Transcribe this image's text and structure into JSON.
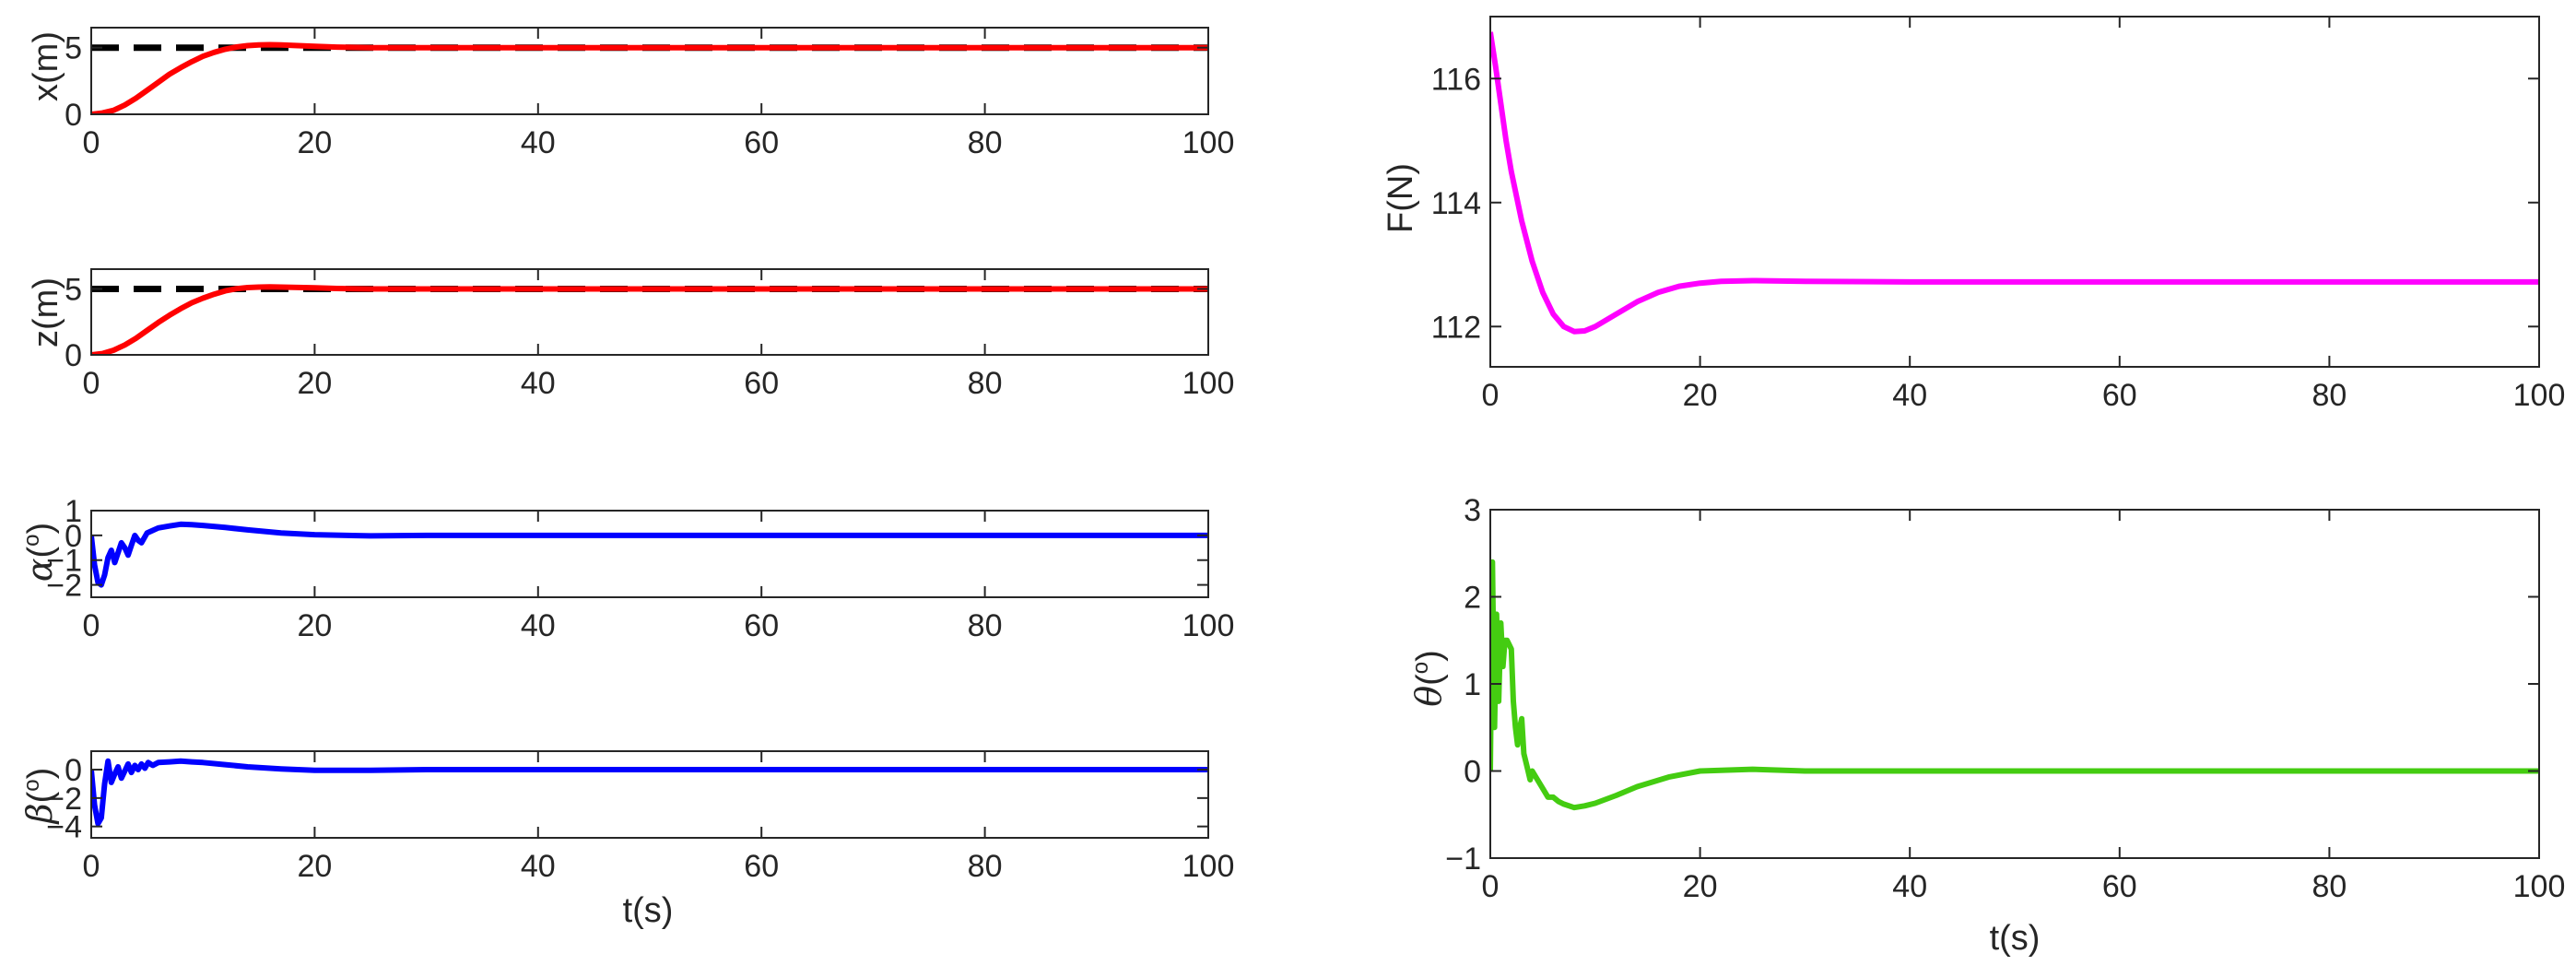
{
  "chart_data": [
    {
      "id": "x",
      "type": "line",
      "xlabel": "",
      "ylabel": "x(m)",
      "xlim": [
        0,
        100
      ],
      "ylim": [
        0,
        6.5
      ],
      "xticks": [
        0,
        20,
        40,
        60,
        80,
        100
      ],
      "yticks": [
        0,
        5
      ],
      "series": [
        {
          "name": "reference",
          "style": "dashed",
          "color": "#000000",
          "x": [
            0,
            100
          ],
          "y": [
            5,
            5
          ]
        },
        {
          "name": "x",
          "style": "solid",
          "color": "#ff0000",
          "x": [
            0,
            1,
            2,
            3,
            4,
            5,
            6,
            7,
            8,
            9,
            10,
            11,
            12,
            13,
            14,
            15,
            16,
            17,
            18,
            20,
            22,
            25,
            30,
            40,
            60,
            80,
            100
          ],
          "y": [
            0,
            0.1,
            0.3,
            0.7,
            1.2,
            1.8,
            2.4,
            3.0,
            3.5,
            3.95,
            4.35,
            4.65,
            4.88,
            5.05,
            5.15,
            5.2,
            5.22,
            5.2,
            5.17,
            5.1,
            5.04,
            5.0,
            5.0,
            5.0,
            5.0,
            5.0,
            5.0
          ]
        }
      ]
    },
    {
      "id": "z",
      "type": "line",
      "xlabel": "",
      "ylabel": "z(m)",
      "xlim": [
        0,
        100
      ],
      "ylim": [
        0,
        6.5
      ],
      "xticks": [
        0,
        20,
        40,
        60,
        80,
        100
      ],
      "yticks": [
        0,
        5
      ],
      "series": [
        {
          "name": "reference",
          "style": "dashed",
          "color": "#000000",
          "x": [
            0,
            100
          ],
          "y": [
            5,
            5
          ]
        },
        {
          "name": "z",
          "style": "solid",
          "color": "#ff0000",
          "x": [
            0,
            1,
            2,
            3,
            4,
            5,
            6,
            7,
            8,
            9,
            10,
            11,
            12,
            13,
            14,
            15,
            16,
            17,
            18,
            20,
            22,
            25,
            30,
            40,
            60,
            80,
            100
          ],
          "y": [
            0,
            0.1,
            0.35,
            0.75,
            1.25,
            1.85,
            2.45,
            3.0,
            3.5,
            3.95,
            4.3,
            4.6,
            4.85,
            5.02,
            5.1,
            5.14,
            5.15,
            5.14,
            5.12,
            5.08,
            5.03,
            5.0,
            5.0,
            5.0,
            5.0,
            5.0,
            5.0
          ]
        }
      ]
    },
    {
      "id": "alpha",
      "type": "line",
      "xlabel": "",
      "ylabel": "α(°)",
      "ylabel_greek": "α",
      "ylabel_unit_open": "(",
      "ylabel_unit_sup": "o",
      "ylabel_unit_close": ")",
      "xlim": [
        0,
        100
      ],
      "ylim": [
        -2.5,
        1
      ],
      "xticks": [
        0,
        20,
        40,
        60,
        80,
        100
      ],
      "yticks": [
        -2,
        -1,
        0,
        1
      ],
      "series": [
        {
          "name": "alpha",
          "style": "solid",
          "color": "#0000ff",
          "x": [
            0,
            0.3,
            0.6,
            0.9,
            1.2,
            1.5,
            1.8,
            2.1,
            2.4,
            2.7,
            3.0,
            3.3,
            3.6,
            3.9,
            4.2,
            4.5,
            5,
            5.5,
            6,
            7,
            8,
            9,
            10,
            12,
            14,
            17,
            20,
            25,
            30,
            40,
            60,
            80,
            100
          ],
          "y": [
            0,
            -1.2,
            -1.9,
            -2.0,
            -1.6,
            -0.9,
            -0.6,
            -1.1,
            -0.7,
            -0.3,
            -0.5,
            -0.8,
            -0.4,
            0.0,
            -0.2,
            -0.3,
            0.1,
            0.2,
            0.3,
            0.38,
            0.45,
            0.43,
            0.4,
            0.32,
            0.22,
            0.1,
            0.03,
            -0.02,
            0.0,
            0.0,
            0.0,
            0.0,
            0.0
          ]
        }
      ]
    },
    {
      "id": "beta",
      "type": "line",
      "xlabel": "t(s)",
      "ylabel": "β(°)",
      "ylabel_greek": "β",
      "ylabel_unit_open": "(",
      "ylabel_unit_sup": "o",
      "ylabel_unit_close": ")",
      "xlim": [
        0,
        100
      ],
      "ylim": [
        -4.8,
        1.3
      ],
      "xticks": [
        0,
        20,
        40,
        60,
        80,
        100
      ],
      "yticks": [
        -4,
        -2,
        0
      ],
      "series": [
        {
          "name": "beta",
          "style": "solid",
          "color": "#0000ff",
          "x": [
            0,
            0.3,
            0.6,
            0.9,
            1.2,
            1.5,
            1.8,
            2.1,
            2.4,
            2.7,
            3.0,
            3.3,
            3.6,
            3.9,
            4.2,
            4.5,
            4.8,
            5.1,
            5.5,
            6,
            7,
            8,
            9,
            10,
            12,
            14,
            17,
            20,
            25,
            30,
            40,
            60,
            80,
            100
          ],
          "y": [
            0,
            -2.5,
            -3.8,
            -3.4,
            -1.0,
            0.6,
            -0.9,
            -0.3,
            0.2,
            -0.6,
            -0.1,
            0.4,
            -0.2,
            0.3,
            0.0,
            0.4,
            0.1,
            0.5,
            0.3,
            0.5,
            0.55,
            0.6,
            0.55,
            0.5,
            0.35,
            0.2,
            0.05,
            -0.05,
            -0.05,
            0.0,
            0.0,
            0.0,
            0.0,
            0.0
          ]
        }
      ]
    },
    {
      "id": "F",
      "type": "line",
      "xlabel": "",
      "ylabel": "F(N)",
      "xlim": [
        0,
        100
      ],
      "ylim": [
        111.35,
        117.0
      ],
      "xticks": [
        0,
        20,
        40,
        60,
        80,
        100
      ],
      "yticks": [
        112,
        114,
        116
      ],
      "series": [
        {
          "name": "F",
          "style": "solid",
          "color": "#ff00ff",
          "x": [
            0,
            0.5,
            1,
            1.5,
            2,
            3,
            4,
            5,
            6,
            7,
            8,
            9,
            10,
            11,
            12,
            14,
            16,
            18,
            20,
            22,
            25,
            30,
            40,
            60,
            80,
            100
          ],
          "y": [
            116.75,
            116.2,
            115.6,
            115.0,
            114.5,
            113.7,
            113.05,
            112.55,
            112.2,
            112.0,
            111.92,
            111.93,
            112.0,
            112.1,
            112.2,
            112.4,
            112.55,
            112.65,
            112.7,
            112.73,
            112.74,
            112.73,
            112.72,
            112.72,
            112.72,
            112.72
          ]
        }
      ]
    },
    {
      "id": "theta",
      "type": "line",
      "xlabel": "t(s)",
      "ylabel": "θ(°)",
      "ylabel_greek": "θ",
      "ylabel_unit_open": "(",
      "ylabel_unit_sup": "o",
      "ylabel_unit_close": ")",
      "xlim": [
        0,
        100
      ],
      "ylim": [
        -1,
        3
      ],
      "xticks": [
        0,
        20,
        40,
        60,
        80,
        100
      ],
      "yticks": [
        -1,
        0,
        1,
        2,
        3
      ],
      "series": [
        {
          "name": "theta",
          "style": "solid",
          "color": "#44cc11",
          "x": [
            0,
            0.2,
            0.4,
            0.6,
            0.8,
            1.0,
            1.2,
            1.4,
            1.6,
            1.8,
            2.0,
            2.2,
            2.4,
            2.6,
            2.8,
            3.0,
            3.2,
            3.4,
            3.6,
            3.8,
            4.0,
            4.5,
            5,
            5.5,
            6,
            6.5,
            7,
            8,
            9,
            10,
            12,
            14,
            17,
            20,
            25,
            30,
            40,
            60,
            80,
            100
          ],
          "y": [
            0,
            2.4,
            0.5,
            1.8,
            0.8,
            1.7,
            1.2,
            1.5,
            1.5,
            1.45,
            1.4,
            0.8,
            0.5,
            0.3,
            0.5,
            0.6,
            0.2,
            0.1,
            0.0,
            -0.1,
            0.0,
            -0.1,
            -0.2,
            -0.3,
            -0.3,
            -0.35,
            -0.38,
            -0.42,
            -0.4,
            -0.37,
            -0.28,
            -0.18,
            -0.07,
            0.0,
            0.02,
            0.0,
            0.0,
            0.0,
            0.0,
            0.0
          ]
        }
      ]
    }
  ]
}
